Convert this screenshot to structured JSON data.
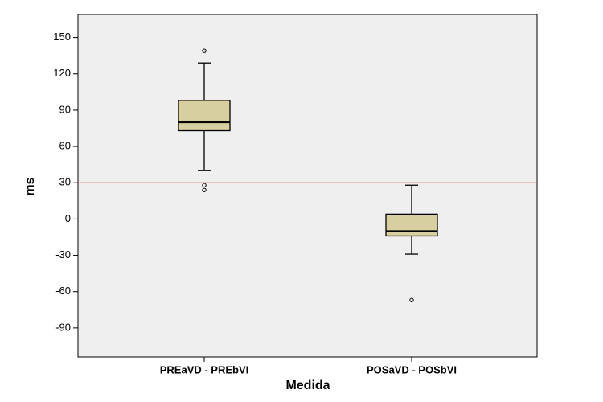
{
  "chart_data": {
    "type": "box",
    "x_label": "Medida",
    "y_label": "ms",
    "categories": [
      "PREaVD - PREbVI",
      "POSaVD - POSbVI"
    ],
    "boxes": [
      {
        "whislo": 40,
        "q1": 73,
        "med": 80,
        "q3": 98,
        "whishi": 129,
        "fliers": [
          139,
          28,
          24
        ]
      },
      {
        "whislo": -29,
        "q1": -14,
        "med": -10,
        "q3": 4,
        "whishi": 28,
        "fliers": [
          -67
        ]
      }
    ],
    "color": "#d7cf9f",
    "plot_background": "#efefef",
    "reference_line": 30,
    "reference_line_color": "#e8706a",
    "ylim": [
      -114,
      169
    ],
    "yticks": [
      150,
      120,
      90,
      60,
      30,
      0,
      -30,
      -60,
      -90
    ]
  }
}
